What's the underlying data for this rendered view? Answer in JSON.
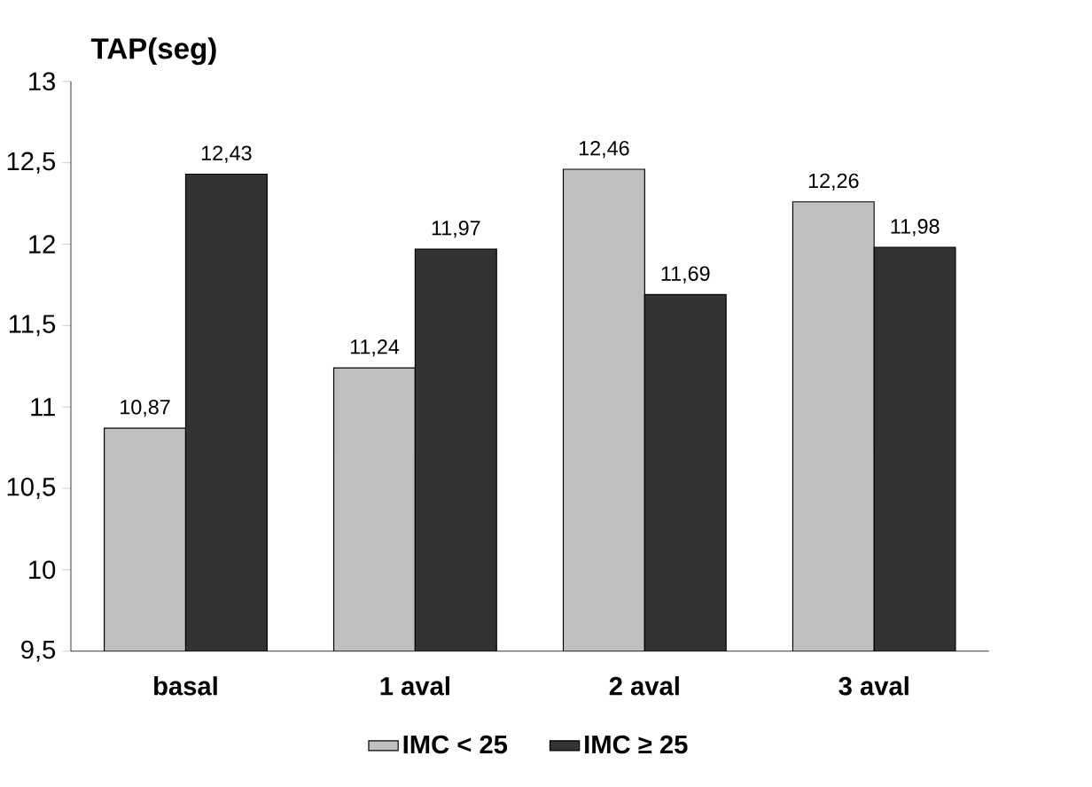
{
  "chart_data": {
    "type": "bar",
    "ylabel": "TAP(seg)",
    "categories": [
      "basal",
      "1 aval",
      "2 aval",
      "3 aval"
    ],
    "series": [
      {
        "name": "IMC < 25",
        "color": "#c0c0c0",
        "values": [
          10.87,
          11.24,
          12.46,
          12.26
        ],
        "value_labels": [
          "10,87",
          "11,24",
          "12,46",
          "12,26"
        ]
      },
      {
        "name": "IMC ≥ 25",
        "color": "#333333",
        "values": [
          12.43,
          11.97,
          11.69,
          11.98
        ],
        "value_labels": [
          "12,43",
          "11,97",
          "11,69",
          "11,98"
        ]
      }
    ],
    "ylim": [
      9.5,
      13
    ],
    "yticks": [
      {
        "value": 9.5,
        "label": "9,5"
      },
      10,
      {
        "value": 10.5,
        "label": "10,5"
      },
      11,
      {
        "value": 11.5,
        "label": "11,5"
      },
      12,
      {
        "value": 12.5,
        "label": "12,5"
      },
      13
    ],
    "legend": "bottom"
  }
}
